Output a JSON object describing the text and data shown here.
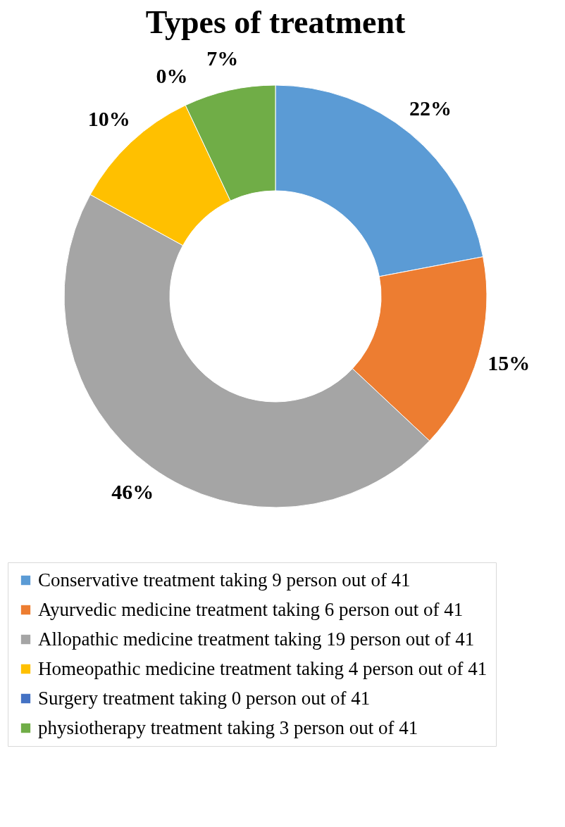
{
  "chart_data": {
    "type": "donut",
    "title": "Types of treatment",
    "categories": [
      "Conservative treatment taking 9 person out of 41",
      "Ayurvedic medicine treatment  taking 6 person out of 41",
      "Allopathic medicine treatment taking 19 person out of 41",
      "Homeopathic medicine treatment taking 4 person out of 41",
      "Surgery treatment taking 0 person out of 41",
      "physiotherapy treatment taking 3 person out of 41"
    ],
    "values": [
      22,
      15,
      46,
      10,
      0,
      7
    ],
    "value_labels": [
      "22%",
      "15%",
      "46%",
      "10%",
      "0%",
      "7%"
    ],
    "colors": [
      "#5b9bd5",
      "#ed7d31",
      "#a5a5a5",
      "#ffc000",
      "#4472c4",
      "#70ad47"
    ],
    "legend": "bottom"
  }
}
